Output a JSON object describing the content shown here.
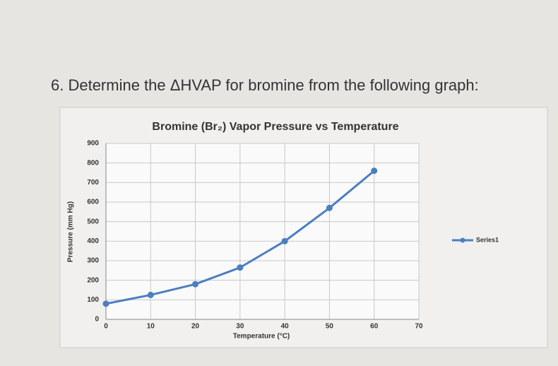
{
  "question": "6. Determine the ΔHVAP for bromine from the following graph:",
  "chart_data": {
    "type": "line",
    "title": "Bromine (Br₂) Vapor Pressure vs Temperature",
    "x_label": "Temperature (°C)",
    "y_label": "Pressure (mm Hg)",
    "x": [
      0,
      10,
      20,
      30,
      40,
      50,
      60
    ],
    "series": [
      {
        "name": "Series1",
        "color": "#4a7fc1",
        "values": [
          80,
          125,
          180,
          265,
          400,
          570,
          760
        ]
      }
    ],
    "xlim": [
      0,
      70
    ],
    "xticks": [
      0,
      10,
      20,
      30,
      40,
      50,
      60,
      70
    ],
    "ylim": [
      0,
      900
    ],
    "yticks": [
      0,
      100,
      200,
      300,
      400,
      500,
      600,
      700,
      800,
      900
    ],
    "grid": true,
    "legend": "right"
  }
}
